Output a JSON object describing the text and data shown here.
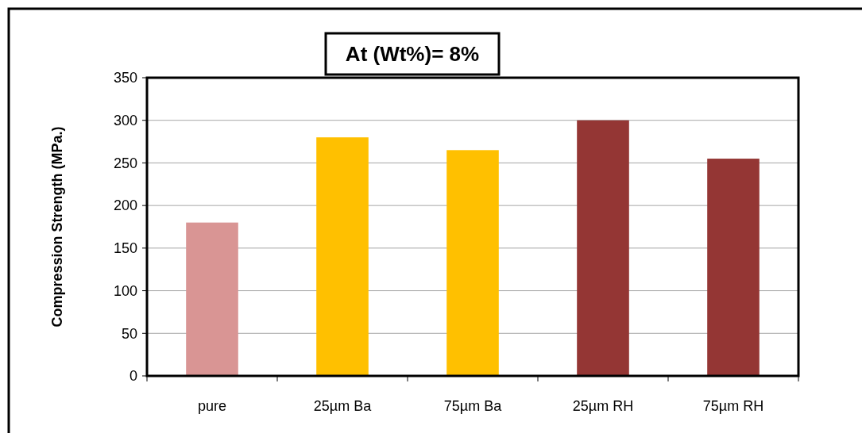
{
  "chart_data": {
    "type": "bar",
    "title": "At (Wt%)= 8%",
    "ylabel": "Compression Strength (MPa.)",
    "categories": [
      "pure",
      "25µm Ba",
      "75µm Ba",
      "25µm RH",
      "75µm RH"
    ],
    "values": [
      180,
      280,
      265,
      300,
      255
    ],
    "colors": [
      "#d99594",
      "#ffc000",
      "#ffc000",
      "#943634",
      "#943634"
    ],
    "ylim": [
      0,
      350
    ],
    "yticks": [
      0,
      50,
      100,
      150,
      200,
      250,
      300,
      350
    ],
    "grid": "y"
  }
}
